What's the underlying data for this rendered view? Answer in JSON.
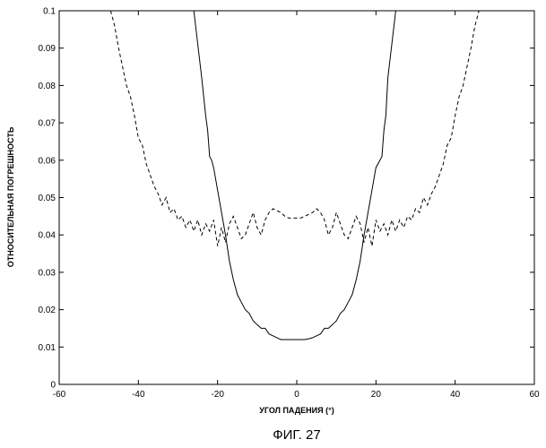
{
  "chart_data": {
    "type": "line",
    "title": "",
    "xlabel": "УГОЛ ПАДЕНИЯ (°)",
    "ylabel": "ОТНОСИТЕЛЬНАЯ ПОГРЕШНОСТЬ",
    "caption": "ФИГ. 27",
    "xlim": [
      -60,
      60
    ],
    "ylim": [
      0,
      0.1
    ],
    "xticks": [
      "-60",
      "-40",
      "-20",
      "0",
      "20",
      "40",
      "60"
    ],
    "yticks": [
      "0",
      "0.01",
      "0.02",
      "0.03",
      "0.04",
      "0.05",
      "0.06",
      "0.07",
      "0.08",
      "0.09",
      "0.1"
    ],
    "grid": false,
    "legend": "none",
    "colors": {
      "line": "#000000",
      "axes": "#000000"
    },
    "series": [
      {
        "style": "solid",
        "x": [
          -26,
          -25,
          -24,
          -23,
          -22.5,
          -22,
          -21.5,
          -21,
          -20,
          -19,
          -18,
          -17,
          -16,
          -15,
          -14,
          -13,
          -12,
          -11,
          -10,
          -9,
          -8,
          -7,
          -6,
          -5,
          -4,
          -3,
          -2,
          -1,
          0,
          1,
          2,
          3,
          4,
          5,
          6,
          7,
          8,
          9,
          10,
          11,
          12,
          13,
          14,
          15,
          16,
          17,
          18,
          19,
          20,
          21,
          21.5,
          22,
          22.5,
          23,
          24,
          25,
          26
        ],
        "y": [
          0.1,
          0.091,
          0.082,
          0.072,
          0.068,
          0.061,
          0.06,
          0.058,
          0.052,
          0.046,
          0.04,
          0.033,
          0.028,
          0.024,
          0.022,
          0.02,
          0.019,
          0.017,
          0.016,
          0.015,
          0.015,
          0.0135,
          0.013,
          0.0125,
          0.012,
          0.012,
          0.012,
          0.012,
          0.012,
          0.012,
          0.012,
          0.0122,
          0.0125,
          0.013,
          0.0135,
          0.015,
          0.015,
          0.016,
          0.017,
          0.019,
          0.02,
          0.022,
          0.024,
          0.028,
          0.033,
          0.04,
          0.046,
          0.052,
          0.058,
          0.06,
          0.061,
          0.068,
          0.072,
          0.082,
          0.091,
          0.1,
          0.1
        ]
      },
      {
        "style": "dashed",
        "x": [
          -47,
          -46,
          -45,
          -44,
          -43,
          -42,
          -41,
          -40,
          -39,
          -38,
          -37,
          -36,
          -35,
          -34,
          -33,
          -32,
          -31,
          -30,
          -29,
          -28,
          -27,
          -26,
          -25,
          -24,
          -23,
          -22,
          -21,
          -20,
          -19,
          -18,
          -17,
          -16,
          -15,
          -14,
          -13,
          -12,
          -11,
          -10,
          -9,
          -8,
          -7,
          -6,
          -5,
          -4,
          -3,
          -2,
          -1,
          0,
          1,
          2,
          3,
          4,
          5,
          6,
          7,
          8,
          9,
          10,
          11,
          12,
          13,
          14,
          15,
          16,
          17,
          18,
          19,
          20,
          21,
          22,
          23,
          24,
          25,
          26,
          27,
          28,
          29,
          30,
          31,
          32,
          33,
          34,
          35,
          36,
          37,
          38,
          39,
          40,
          41,
          42,
          43,
          44,
          45,
          46,
          47
        ],
        "y": [
          0.1,
          0.096,
          0.09,
          0.085,
          0.08,
          0.077,
          0.072,
          0.066,
          0.064,
          0.059,
          0.056,
          0.053,
          0.051,
          0.048,
          0.05,
          0.046,
          0.047,
          0.044,
          0.045,
          0.042,
          0.044,
          0.041,
          0.044,
          0.04,
          0.043,
          0.041,
          0.044,
          0.037,
          0.042,
          0.038,
          0.043,
          0.045,
          0.042,
          0.039,
          0.04,
          0.043,
          0.046,
          0.042,
          0.04,
          0.044,
          0.046,
          0.047,
          0.0465,
          0.046,
          0.045,
          0.0445,
          0.0445,
          0.0445,
          0.0445,
          0.045,
          0.0455,
          0.046,
          0.047,
          0.046,
          0.044,
          0.04,
          0.042,
          0.046,
          0.043,
          0.04,
          0.039,
          0.042,
          0.045,
          0.043,
          0.038,
          0.042,
          0.037,
          0.044,
          0.041,
          0.043,
          0.04,
          0.044,
          0.041,
          0.044,
          0.042,
          0.045,
          0.044,
          0.047,
          0.046,
          0.05,
          0.048,
          0.051,
          0.053,
          0.056,
          0.059,
          0.064,
          0.066,
          0.072,
          0.077,
          0.08,
          0.085,
          0.09,
          0.096,
          0.1,
          0.1
        ]
      }
    ]
  }
}
